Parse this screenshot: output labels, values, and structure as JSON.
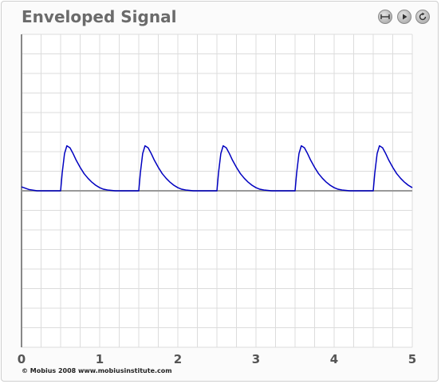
{
  "app": {
    "title": "Enveloped Signal",
    "footer": "© Mobius 2008 www.mobiusinstitute.com"
  },
  "controls": [
    {
      "name": "fit-width-button",
      "icon": "fit-width-icon"
    },
    {
      "name": "play-button",
      "icon": "play-icon"
    },
    {
      "name": "reset-button",
      "icon": "reset-icon"
    }
  ],
  "colors": {
    "signal": "#0000c0",
    "baseline": "#999999",
    "grid": "#dcdcdc",
    "axis": "#888888",
    "tick_label": "#555555"
  },
  "chart_data": {
    "type": "line",
    "title": "Enveloped Signal",
    "xlabel": "",
    "ylabel": "",
    "xlim": [
      0,
      5
    ],
    "ylim": [
      -4,
      4
    ],
    "x_ticks": [
      "0",
      "1",
      "2",
      "3",
      "4",
      "5"
    ],
    "grid": true,
    "series": [
      {
        "x": [
          0,
          0.1,
          0.2,
          0.3,
          0.4,
          0.5,
          0.52,
          0.55,
          0.58,
          0.62,
          0.66,
          0.7,
          0.75,
          0.8,
          0.85,
          0.9,
          0.95,
          1.0,
          1.05,
          1.1,
          1.2,
          1.3,
          1.4,
          1.5,
          1.52,
          1.55,
          1.58,
          1.62,
          1.66,
          1.7,
          1.75,
          1.8,
          1.85,
          1.9,
          1.95,
          2.0,
          2.05,
          2.1,
          2.2,
          2.3,
          2.4,
          2.5,
          2.52,
          2.55,
          2.58,
          2.62,
          2.66,
          2.7,
          2.75,
          2.8,
          2.85,
          2.9,
          2.95,
          3.0,
          3.05,
          3.1,
          3.2,
          3.3,
          3.4,
          3.5,
          3.52,
          3.55,
          3.58,
          3.62,
          3.66,
          3.7,
          3.75,
          3.8,
          3.85,
          3.9,
          3.95,
          4.0,
          4.05,
          4.1,
          4.2,
          4.3,
          4.4,
          4.5,
          4.52,
          4.55,
          4.58,
          4.62,
          4.66,
          4.7,
          4.75,
          4.8,
          4.85,
          4.9,
          4.95,
          5.0
        ],
        "y": [
          0.1,
          0.03,
          0,
          0,
          0,
          0,
          0.45,
          0.95,
          1.15,
          1.1,
          0.95,
          0.78,
          0.6,
          0.44,
          0.32,
          0.22,
          0.14,
          0.08,
          0.04,
          0.02,
          0,
          0,
          0,
          0,
          0.45,
          0.95,
          1.15,
          1.1,
          0.95,
          0.78,
          0.6,
          0.44,
          0.32,
          0.22,
          0.14,
          0.08,
          0.04,
          0.02,
          0,
          0,
          0,
          0,
          0.45,
          0.95,
          1.15,
          1.1,
          0.95,
          0.78,
          0.6,
          0.44,
          0.32,
          0.22,
          0.14,
          0.08,
          0.04,
          0.02,
          0,
          0,
          0,
          0,
          0.45,
          0.95,
          1.15,
          1.1,
          0.95,
          0.78,
          0.6,
          0.44,
          0.32,
          0.22,
          0.14,
          0.08,
          0.04,
          0.02,
          0,
          0,
          0,
          0,
          0.45,
          0.95,
          1.15,
          1.1,
          0.95,
          0.78,
          0.6,
          0.44,
          0.32,
          0.22,
          0.14,
          0.08
        ]
      }
    ]
  }
}
